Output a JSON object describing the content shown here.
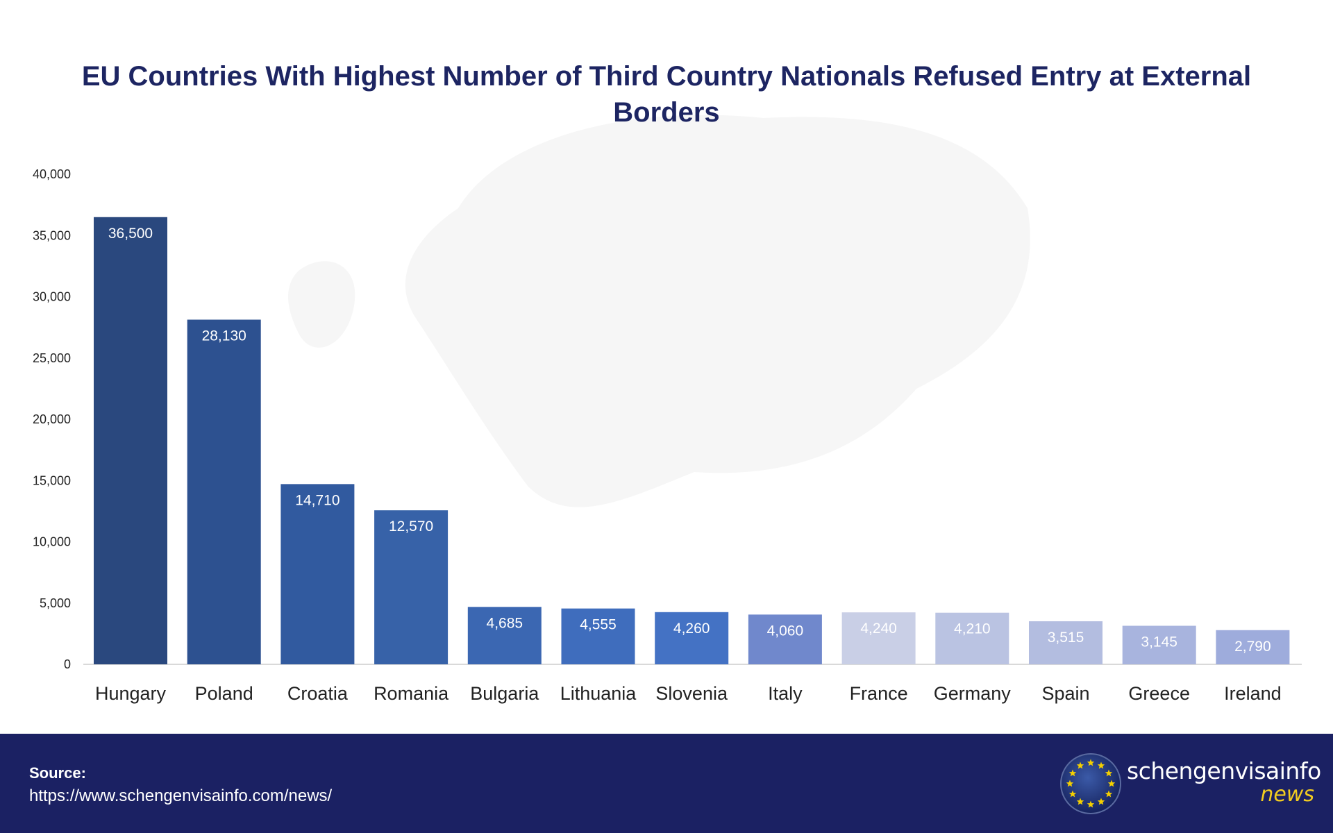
{
  "chart_data": {
    "type": "bar",
    "title": "EU Countries With Highest Number of Third Country Nationals Refused Entry at External Borders",
    "categories": [
      "Hungary",
      "Poland",
      "Croatia",
      "Romania",
      "Bulgaria",
      "Lithuania",
      "Slovenia",
      "Italy",
      "France",
      "Germany",
      "Spain",
      "Greece",
      "Ireland"
    ],
    "values": [
      36500,
      28130,
      14710,
      12570,
      4685,
      4555,
      4260,
      4060,
      4240,
      4210,
      3515,
      3145,
      2790
    ],
    "data_labels": [
      "36,500",
      "28,130",
      "14,710",
      "12,570",
      "4,685",
      "4,555",
      "4,260",
      "4,060",
      "4,240",
      "4,210",
      "3,515",
      "3,145",
      "2,790"
    ],
    "bar_colors": [
      "#2a487e",
      "#2d5190",
      "#315a9f",
      "#3762a8",
      "#3b67b2",
      "#3f6dbd",
      "#4472c4",
      "#7088cc",
      "#c9cfe6",
      "#bac3e2",
      "#b3bde0",
      "#a8b4de",
      "#9eacdc"
    ],
    "ylim": [
      0,
      40000
    ],
    "yticks": [
      0,
      5000,
      10000,
      15000,
      20000,
      25000,
      30000,
      35000,
      40000
    ],
    "ytick_labels": [
      "0",
      "5,000",
      "10,000",
      "15,000",
      "20,000",
      "25,000",
      "30,000",
      "35,000",
      "40,000"
    ],
    "grid": false,
    "xlabel": "",
    "ylabel": "",
    "title_color": "#1d2562"
  },
  "footer": {
    "source_label": "Source:",
    "source_url": "https://www.schengenvisainfo.com/news/",
    "logo_text": "schengenvisainfo",
    "logo_subtext": "news",
    "background": "#1b2163"
  }
}
